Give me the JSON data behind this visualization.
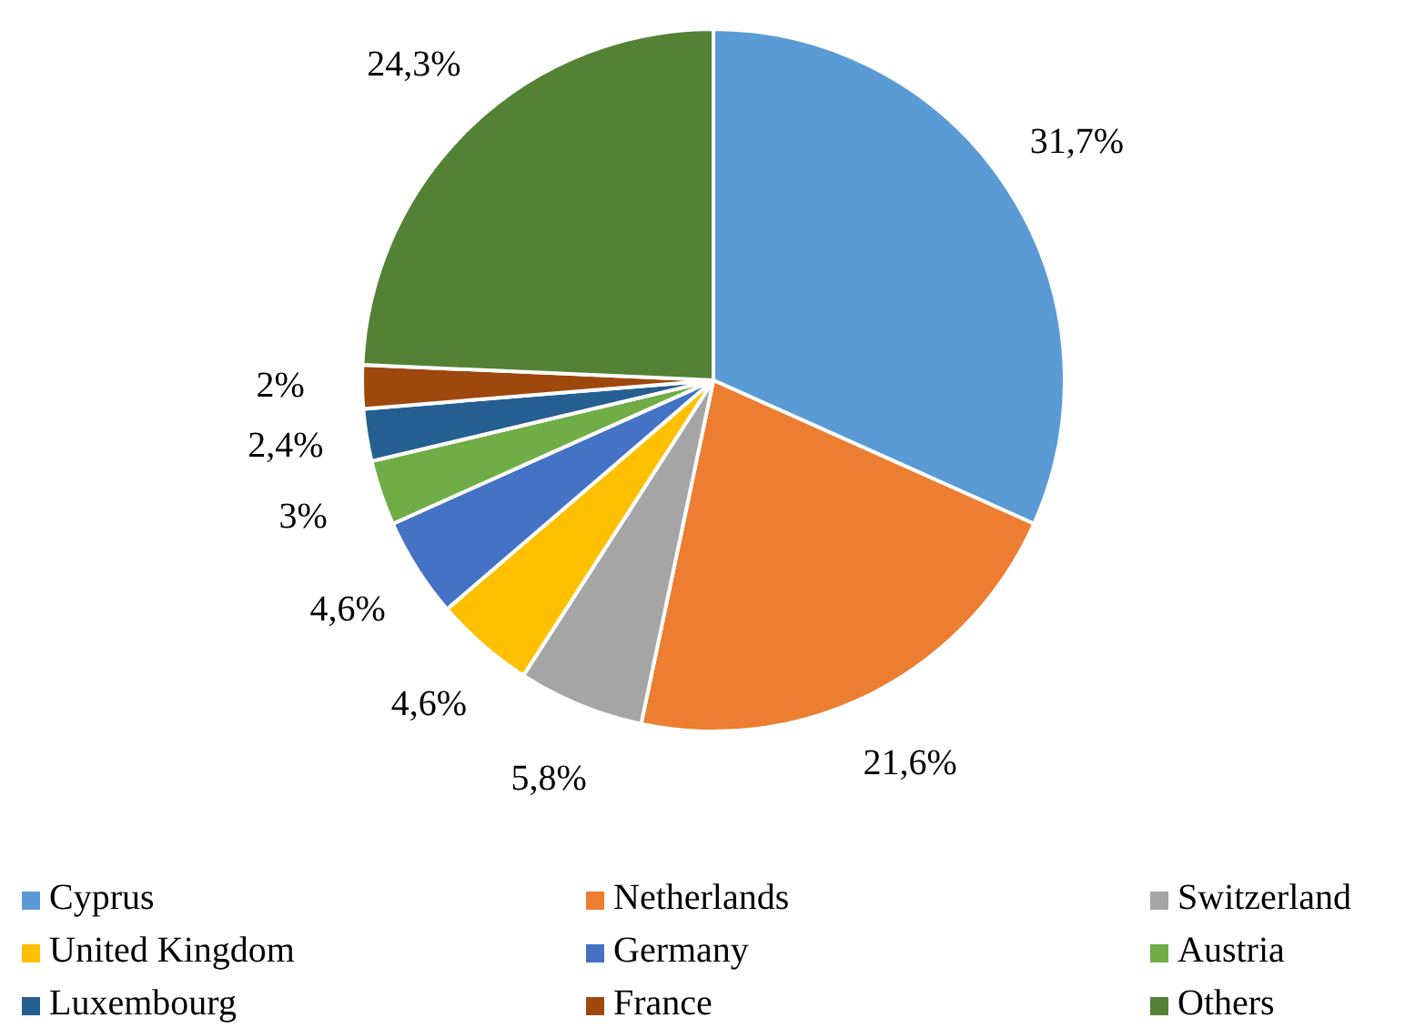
{
  "chart_data": {
    "type": "pie",
    "categories": [
      "Cyprus",
      "Netherlands",
      "Switzerland",
      "United Kingdom",
      "Germany",
      "Austria",
      "Luxembourg",
      "France",
      "Others"
    ],
    "values": [
      31.7,
      21.6,
      5.8,
      4.6,
      4.6,
      3,
      2.4,
      2,
      24.3
    ],
    "value_labels": [
      "31,7%",
      "21,6%",
      "5,8%",
      "4,6%",
      "4,6%",
      "3%",
      "2,4%",
      "2%",
      "24,3%"
    ],
    "colors": [
      "#5b9bd5",
      "#ed7d31",
      "#a5a5a5",
      "#ffc000",
      "#4472c4",
      "#70ad47",
      "#255e91",
      "#9e480e",
      "#548235"
    ],
    "legend": "bottom"
  }
}
